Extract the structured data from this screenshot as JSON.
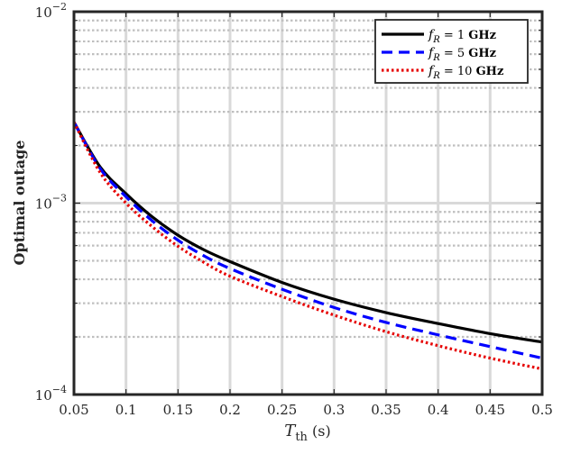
{
  "chart_data": {
    "type": "line",
    "xlabel_main": "T",
    "xlabel_sub": "th",
    "xlabel_unit": " (s)",
    "ylabel": "Optimal outage",
    "xlim": [
      0.05,
      0.5
    ],
    "ylim": [
      0.0001,
      0.01
    ],
    "yscale": "log",
    "grid": true,
    "legend_position": "top-right",
    "x_ticks": [
      "0.05",
      "0.1",
      "0.15",
      "0.2",
      "0.25",
      "0.3",
      "0.35",
      "0.4",
      "0.45",
      "0.5"
    ],
    "y_ticks": [
      {
        "base": "10",
        "exp": "−4"
      },
      {
        "base": "10",
        "exp": "−3"
      },
      {
        "base": "10",
        "exp": "−2"
      }
    ],
    "x": [
      0.05,
      0.075,
      0.1,
      0.125,
      0.15,
      0.175,
      0.2,
      0.25,
      0.3,
      0.35,
      0.4,
      0.45,
      0.5
    ],
    "series": [
      {
        "legend_var": "f",
        "legend_sub": "R",
        "legend_rest": " = 1 ",
        "legend_unit": "GHz",
        "color": "#000000",
        "dash": "solid",
        "values": [
          0.00265,
          0.00155,
          0.00112,
          0.00085,
          0.00068,
          0.00057,
          0.000495,
          0.000385,
          0.000315,
          0.000268,
          0.000235,
          0.000208,
          0.000188
        ]
      },
      {
        "legend_var": "f",
        "legend_sub": "R",
        "legend_rest": " = 5 ",
        "legend_unit": "GHz",
        "color": "#0000ff",
        "dash": "dashed",
        "values": [
          0.00265,
          0.00152,
          0.00108,
          0.00081,
          0.00064,
          0.00053,
          0.000455,
          0.000355,
          0.000285,
          0.000238,
          0.000205,
          0.000178,
          0.000155
        ]
      },
      {
        "legend_var": "f",
        "legend_sub": "R",
        "legend_rest": " = 10 ",
        "legend_unit": "GHz",
        "color": "#e60000",
        "dash": "dotted",
        "values": [
          0.00265,
          0.00145,
          0.001,
          0.000755,
          0.000595,
          0.00049,
          0.000415,
          0.000325,
          0.00026,
          0.000213,
          0.00018,
          0.000155,
          0.000136
        ]
      }
    ]
  }
}
